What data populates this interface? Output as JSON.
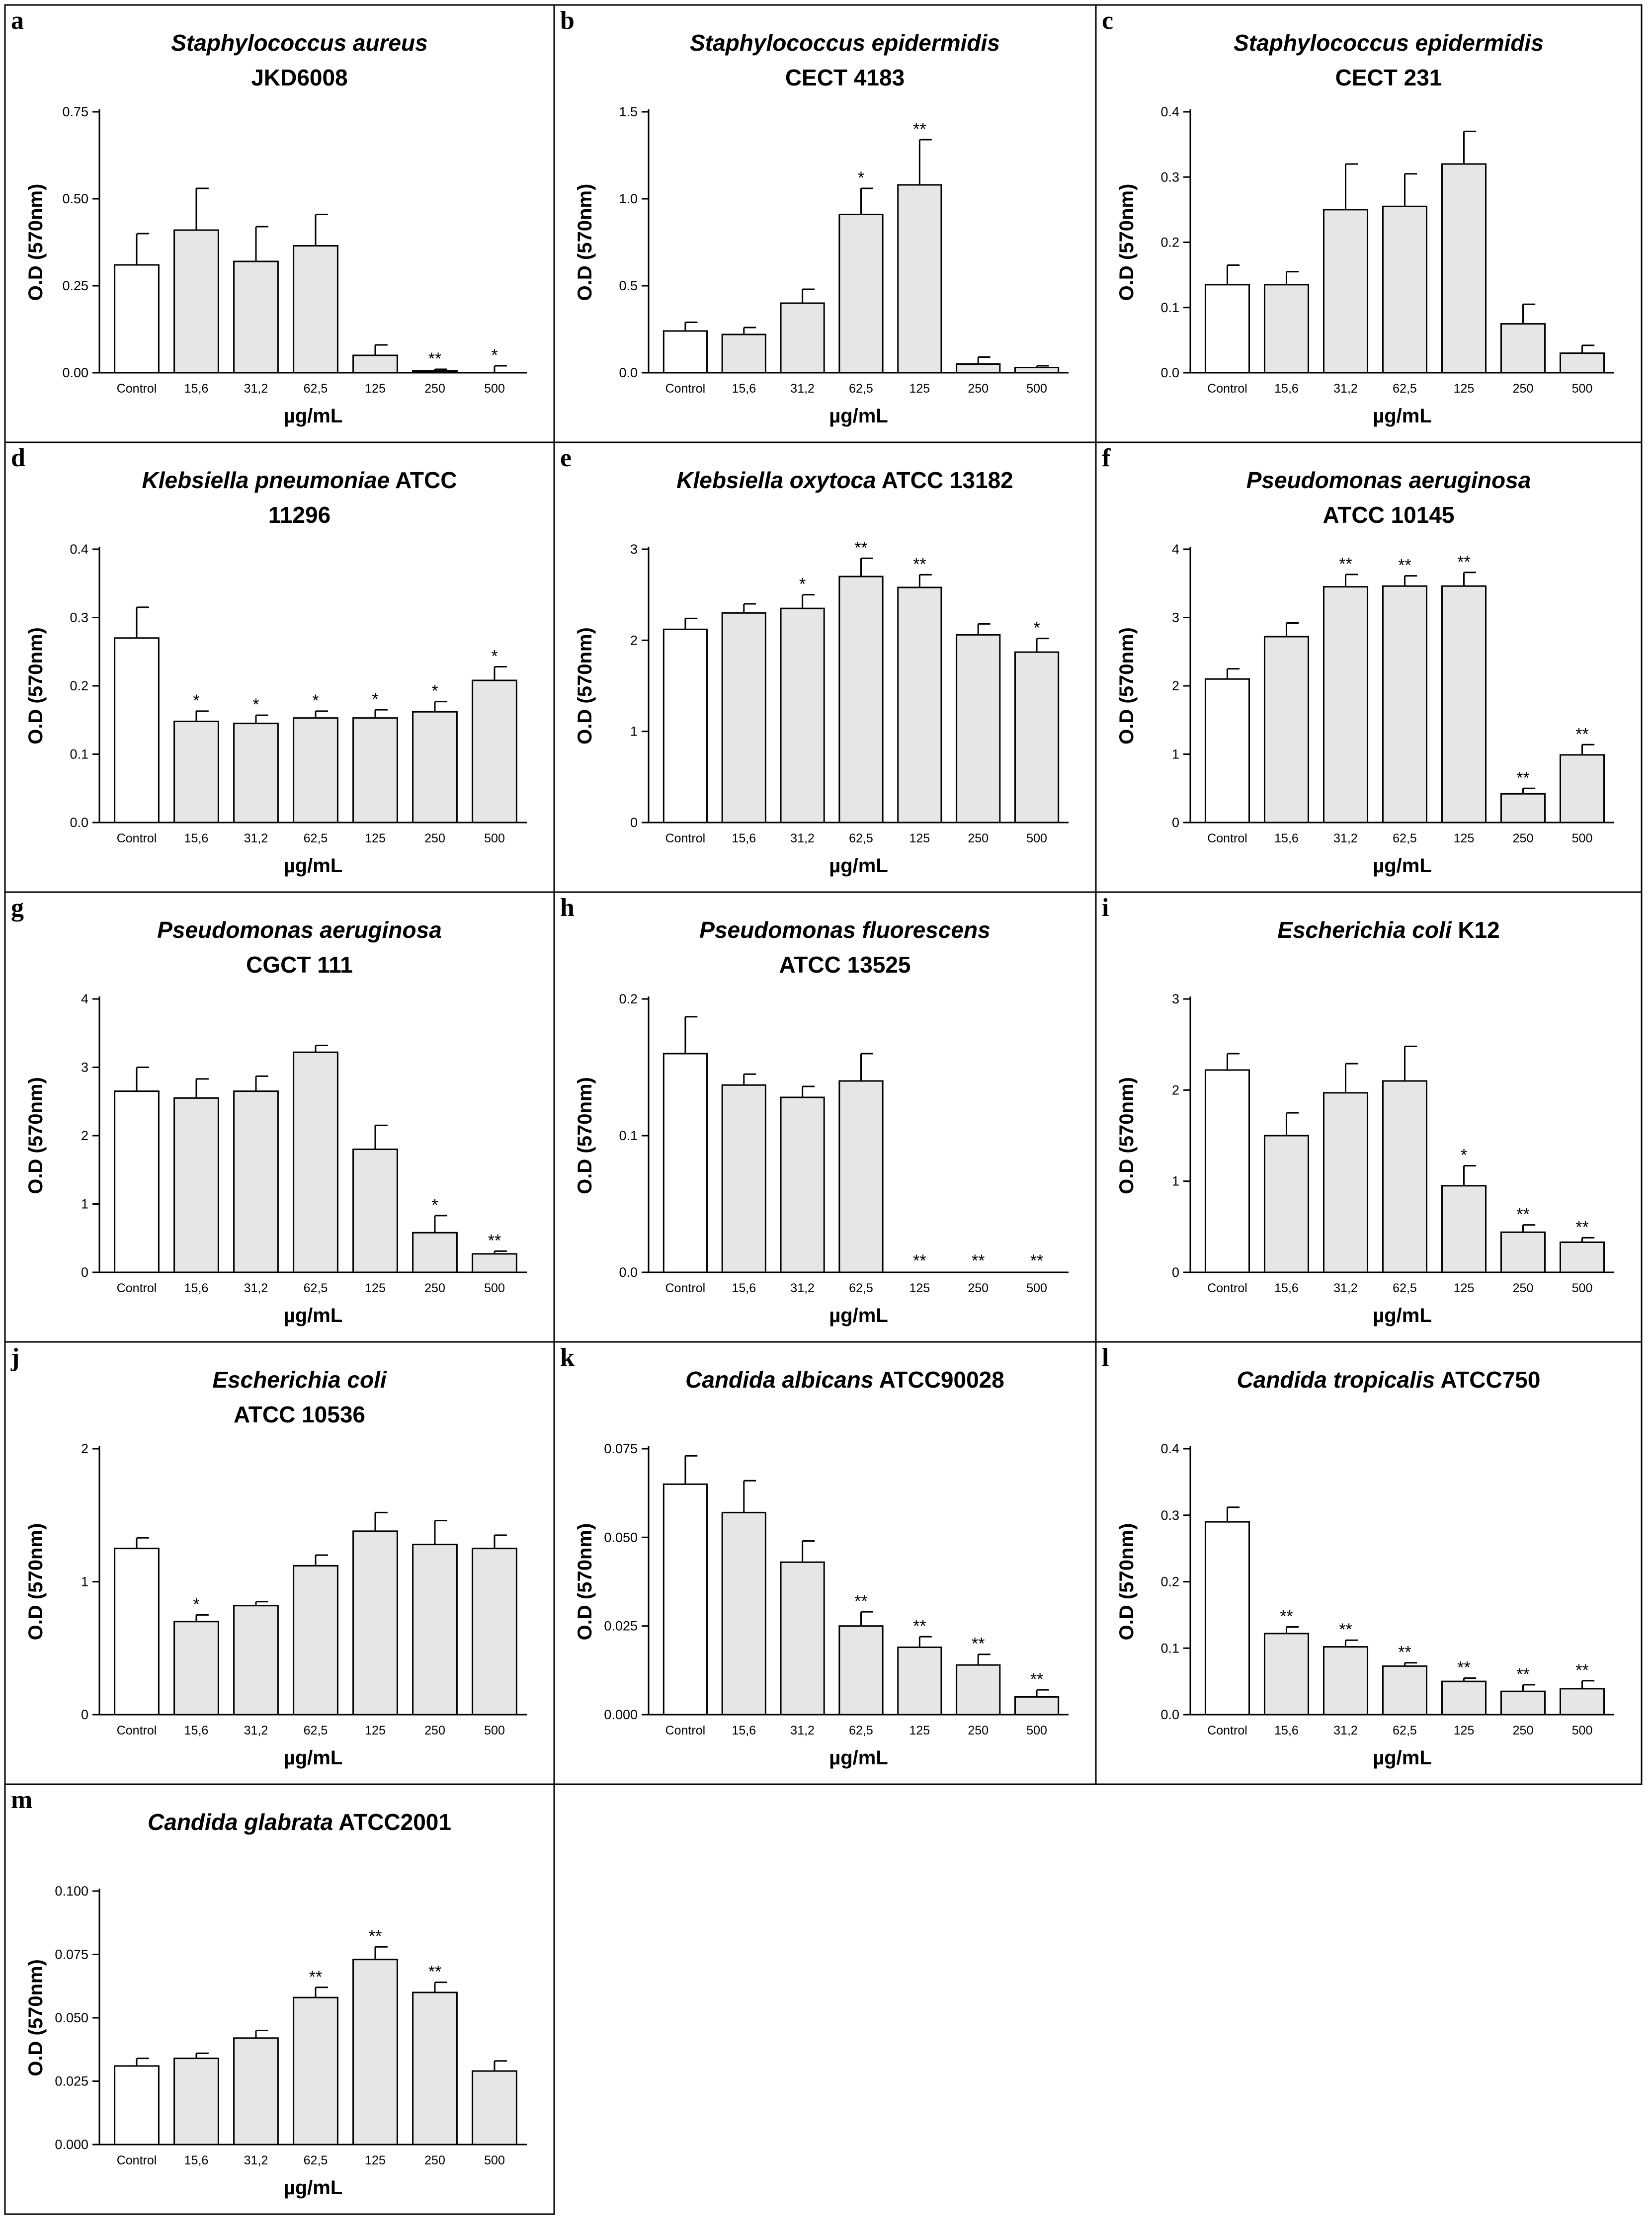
{
  "chart_data": [
    {
      "label": "a",
      "title": [
        {
          "t": "Staphylococcus aureus",
          "i": true
        }
      ],
      "title2": [
        {
          "t": "JKD6008",
          "i": false
        }
      ],
      "type": "bar",
      "ylabel": "O.D (570nm)",
      "xlabel": "µg/mL",
      "ylim": [
        0,
        0.75
      ],
      "yticks": [
        "0.00",
        "0.25",
        "0.50",
        "0.75"
      ],
      "ytick_values": [
        0,
        0.25,
        0.5,
        0.75
      ],
      "categories": [
        "Control",
        "15,6",
        "31,2",
        "62,5",
        "125",
        "250",
        "500"
      ],
      "values": [
        0.31,
        0.41,
        0.32,
        0.365,
        0.05,
        0.005,
        0.0
      ],
      "errors": [
        0.09,
        0.12,
        0.1,
        0.09,
        0.03,
        0.005,
        0.02
      ],
      "significance": [
        "",
        "",
        "",
        "",
        "",
        "**",
        "*"
      ],
      "bar_colors": [
        "#ffffff",
        "#e6e6e6",
        "#e6e6e6",
        "#e6e6e6",
        "#e6e6e6",
        "#e6e6e6",
        "#e6e6e6"
      ]
    },
    {
      "label": "b",
      "title": [
        {
          "t": "Staphylococcus epidermidis",
          "i": true
        }
      ],
      "title2": [
        {
          "t": "CECT 4183",
          "i": false
        }
      ],
      "type": "bar",
      "ylabel": "O.D (570nm)",
      "xlabel": "µg/mL",
      "ylim": [
        0,
        1.5
      ],
      "yticks": [
        "0.0",
        "0.5",
        "1.0",
        "1.5"
      ],
      "ytick_values": [
        0,
        0.5,
        1.0,
        1.5
      ],
      "categories": [
        "Control",
        "15,6",
        "31,2",
        "62,5",
        "125",
        "250",
        "500"
      ],
      "values": [
        0.24,
        0.22,
        0.4,
        0.91,
        1.08,
        0.05,
        0.03
      ],
      "errors": [
        0.05,
        0.04,
        0.08,
        0.15,
        0.26,
        0.04,
        0.01
      ],
      "significance": [
        "",
        "",
        "",
        "*",
        "**",
        "",
        ""
      ],
      "bar_colors": [
        "#ffffff",
        "#e6e6e6",
        "#e6e6e6",
        "#e6e6e6",
        "#e6e6e6",
        "#e6e6e6",
        "#e6e6e6"
      ]
    },
    {
      "label": "c",
      "title": [
        {
          "t": "Staphylococcus epidermidis",
          "i": true
        }
      ],
      "title2": [
        {
          "t": "CECT 231",
          "i": false
        }
      ],
      "type": "bar",
      "ylabel": "O.D (570nm)",
      "xlabel": "µg/mL",
      "ylim": [
        0,
        0.4
      ],
      "yticks": [
        "0.0",
        "0.1",
        "0.2",
        "0.3",
        "0.4"
      ],
      "ytick_values": [
        0,
        0.1,
        0.2,
        0.3,
        0.4
      ],
      "categories": [
        "Control",
        "15,6",
        "31,2",
        "62,5",
        "125",
        "250",
        "500"
      ],
      "values": [
        0.135,
        0.135,
        0.25,
        0.255,
        0.32,
        0.075,
        0.03
      ],
      "errors": [
        0.03,
        0.02,
        0.07,
        0.05,
        0.05,
        0.03,
        0.012
      ],
      "significance": [
        "",
        "",
        "",
        "",
        "",
        "",
        ""
      ],
      "bar_colors": [
        "#ffffff",
        "#e6e6e6",
        "#e6e6e6",
        "#e6e6e6",
        "#e6e6e6",
        "#e6e6e6",
        "#e6e6e6"
      ]
    },
    {
      "label": "d",
      "title": [
        {
          "t": "Klebsiella pneumoniae",
          "i": true
        },
        {
          "t": " ATCC",
          "i": false
        }
      ],
      "title2": [
        {
          "t": "11296",
          "i": false
        }
      ],
      "type": "bar",
      "ylabel": "O.D (570nm)",
      "xlabel": "µg/mL",
      "ylim": [
        0,
        0.4
      ],
      "yticks": [
        "0.0",
        "0.1",
        "0.2",
        "0.3",
        "0.4"
      ],
      "ytick_values": [
        0,
        0.1,
        0.2,
        0.3,
        0.4
      ],
      "categories": [
        "Control",
        "15,6",
        "31,2",
        "62,5",
        "125",
        "250",
        "500"
      ],
      "values": [
        0.27,
        0.148,
        0.145,
        0.153,
        0.153,
        0.162,
        0.208
      ],
      "errors": [
        0.045,
        0.015,
        0.012,
        0.01,
        0.012,
        0.015,
        0.02
      ],
      "significance": [
        "",
        "*",
        "*",
        "*",
        "*",
        "*",
        "*"
      ],
      "bar_colors": [
        "#ffffff",
        "#e6e6e6",
        "#e6e6e6",
        "#e6e6e6",
        "#e6e6e6",
        "#e6e6e6",
        "#e6e6e6"
      ]
    },
    {
      "label": "e",
      "title": [
        {
          "t": "Klebsiella oxytoca",
          "i": true
        },
        {
          "t": " ATCC 13182",
          "i": false
        }
      ],
      "title2": [],
      "type": "bar",
      "ylabel": "O.D (570nm)",
      "xlabel": "µg/mL",
      "ylim": [
        0,
        3
      ],
      "yticks": [
        "0",
        "1",
        "2",
        "3"
      ],
      "ytick_values": [
        0,
        1,
        2,
        3
      ],
      "categories": [
        "Control",
        "15,6",
        "31,2",
        "62,5",
        "125",
        "250",
        "500"
      ],
      "values": [
        2.12,
        2.3,
        2.35,
        2.7,
        2.58,
        2.06,
        1.87
      ],
      "errors": [
        0.12,
        0.1,
        0.15,
        0.2,
        0.14,
        0.12,
        0.15
      ],
      "significance": [
        "",
        "",
        "*",
        "**",
        "**",
        "",
        "*"
      ],
      "bar_colors": [
        "#ffffff",
        "#e6e6e6",
        "#e6e6e6",
        "#e6e6e6",
        "#e6e6e6",
        "#e6e6e6",
        "#e6e6e6"
      ]
    },
    {
      "label": "f",
      "title": [
        {
          "t": "Pseudomonas aeruginosa",
          "i": true
        }
      ],
      "title2": [
        {
          "t": "ATCC 10145",
          "i": false
        }
      ],
      "type": "bar",
      "ylabel": "O.D (570nm)",
      "xlabel": "µg/mL",
      "ylim": [
        0,
        4
      ],
      "yticks": [
        "0",
        "1",
        "2",
        "3",
        "4"
      ],
      "ytick_values": [
        0,
        1,
        2,
        3,
        4
      ],
      "categories": [
        "Control",
        "15,6",
        "31,2",
        "62,5",
        "125",
        "250",
        "500"
      ],
      "values": [
        2.1,
        2.72,
        3.45,
        3.46,
        3.46,
        0.42,
        0.99
      ],
      "errors": [
        0.15,
        0.2,
        0.18,
        0.15,
        0.2,
        0.08,
        0.15
      ],
      "significance": [
        "",
        "",
        "**",
        "**",
        "**",
        "**",
        "**"
      ],
      "bar_colors": [
        "#ffffff",
        "#e6e6e6",
        "#e6e6e6",
        "#e6e6e6",
        "#e6e6e6",
        "#e6e6e6",
        "#e6e6e6"
      ]
    },
    {
      "label": "g",
      "title": [
        {
          "t": "Pseudomonas aeruginosa",
          "i": true
        }
      ],
      "title2": [
        {
          "t": "CGCT 111",
          "i": false
        }
      ],
      "type": "bar",
      "ylabel": "O.D (570nm)",
      "xlabel": "µg/mL",
      "ylim": [
        0,
        4
      ],
      "yticks": [
        "0",
        "1",
        "2",
        "3",
        "4"
      ],
      "ytick_values": [
        0,
        1,
        2,
        3,
        4
      ],
      "categories": [
        "Control",
        "15,6",
        "31,2",
        "62,5",
        "125",
        "250",
        "500"
      ],
      "values": [
        2.65,
        2.55,
        2.65,
        3.22,
        1.8,
        0.58,
        0.27
      ],
      "errors": [
        0.35,
        0.28,
        0.22,
        0.1,
        0.35,
        0.25,
        0.04
      ],
      "significance": [
        "",
        "",
        "",
        "",
        "",
        "*",
        "**"
      ],
      "bar_colors": [
        "#ffffff",
        "#e6e6e6",
        "#e6e6e6",
        "#e6e6e6",
        "#e6e6e6",
        "#e6e6e6",
        "#e6e6e6"
      ]
    },
    {
      "label": "h",
      "title": [
        {
          "t": "Pseudomonas fluorescens",
          "i": true
        }
      ],
      "title2": [
        {
          "t": "ATCC 13525",
          "i": false
        }
      ],
      "type": "bar",
      "ylabel": "O.D (570nm)",
      "xlabel": "µg/mL",
      "ylim": [
        0,
        0.2
      ],
      "yticks": [
        "0.0",
        "0.1",
        "0.2"
      ],
      "ytick_values": [
        0,
        0.1,
        0.2
      ],
      "categories": [
        "Control",
        "15,6",
        "31,2",
        "62,5",
        "125",
        "250",
        "500"
      ],
      "values": [
        0.16,
        0.137,
        0.128,
        0.14,
        0,
        0,
        0
      ],
      "errors": [
        0.027,
        0.008,
        0.008,
        0.02,
        0,
        0,
        0
      ],
      "significance": [
        "",
        "",
        "",
        "",
        "**",
        "**",
        "**"
      ],
      "bar_colors": [
        "#ffffff",
        "#e6e6e6",
        "#e6e6e6",
        "#e6e6e6",
        "#e6e6e6",
        "#e6e6e6",
        "#e6e6e6"
      ]
    },
    {
      "label": "i",
      "title": [
        {
          "t": "Escherichia coli",
          "i": true
        },
        {
          "t": " K12",
          "i": false
        }
      ],
      "title2": [],
      "type": "bar",
      "ylabel": "O.D (570nm)",
      "xlabel": "µg/mL",
      "ylim": [
        0,
        3
      ],
      "yticks": [
        "0",
        "1",
        "2",
        "3"
      ],
      "ytick_values": [
        0,
        1,
        2,
        3
      ],
      "categories": [
        "Control",
        "15,6",
        "31,2",
        "62,5",
        "125",
        "250",
        "500"
      ],
      "values": [
        2.22,
        1.5,
        1.97,
        2.1,
        0.95,
        0.44,
        0.33
      ],
      "errors": [
        0.18,
        0.25,
        0.32,
        0.38,
        0.22,
        0.08,
        0.05
      ],
      "significance": [
        "",
        "",
        "",
        "",
        "*",
        "**",
        "**"
      ],
      "bar_colors": [
        "#ffffff",
        "#e6e6e6",
        "#e6e6e6",
        "#e6e6e6",
        "#e6e6e6",
        "#e6e6e6",
        "#e6e6e6"
      ]
    },
    {
      "label": "j",
      "title": [
        {
          "t": "Escherichia coli",
          "i": true
        }
      ],
      "title2": [
        {
          "t": "ATCC 10536",
          "i": false
        }
      ],
      "type": "bar",
      "ylabel": "O.D (570nm)",
      "xlabel": "µg/mL",
      "ylim": [
        0,
        2
      ],
      "yticks": [
        "0",
        "1",
        "2"
      ],
      "ytick_values": [
        0,
        1,
        2
      ],
      "categories": [
        "Control",
        "15,6",
        "31,2",
        "62,5",
        "125",
        "250",
        "500"
      ],
      "values": [
        1.25,
        0.7,
        0.82,
        1.12,
        1.38,
        1.28,
        1.25
      ],
      "errors": [
        0.08,
        0.05,
        0.03,
        0.08,
        0.14,
        0.18,
        0.1
      ],
      "significance": [
        "",
        "*",
        "",
        "",
        "",
        "",
        ""
      ],
      "bar_colors": [
        "#ffffff",
        "#e6e6e6",
        "#e6e6e6",
        "#e6e6e6",
        "#e6e6e6",
        "#e6e6e6",
        "#e6e6e6"
      ]
    },
    {
      "label": "k",
      "title": [
        {
          "t": "Candida albicans",
          "i": true
        },
        {
          "t": " ATCC90028",
          "i": false
        }
      ],
      "title2": [],
      "type": "bar",
      "ylabel": "O.D (570nm)",
      "xlabel": "µg/mL",
      "ylim": [
        0,
        0.075
      ],
      "yticks": [
        "0.000",
        "0.025",
        "0.050",
        "0.075"
      ],
      "ytick_values": [
        0,
        0.025,
        0.05,
        0.075
      ],
      "categories": [
        "Control",
        "15,6",
        "31,2",
        "62,5",
        "125",
        "250",
        "500"
      ],
      "values": [
        0.065,
        0.057,
        0.043,
        0.025,
        0.019,
        0.014,
        0.005
      ],
      "errors": [
        0.008,
        0.009,
        0.006,
        0.004,
        0.003,
        0.003,
        0.002
      ],
      "significance": [
        "",
        "",
        "",
        "**",
        "**",
        "**",
        "**"
      ],
      "bar_colors": [
        "#ffffff",
        "#e6e6e6",
        "#e6e6e6",
        "#e6e6e6",
        "#e6e6e6",
        "#e6e6e6",
        "#e6e6e6"
      ]
    },
    {
      "label": "l",
      "title": [
        {
          "t": "Candida tropicalis",
          "i": true
        },
        {
          "t": " ATCC750",
          "i": false
        }
      ],
      "title2": [],
      "type": "bar",
      "ylabel": "O.D (570nm)",
      "xlabel": "µg/mL",
      "ylim": [
        0,
        0.4
      ],
      "yticks": [
        "0.0",
        "0.1",
        "0.2",
        "0.3",
        "0.4"
      ],
      "ytick_values": [
        0,
        0.1,
        0.2,
        0.3,
        0.4
      ],
      "categories": [
        "Control",
        "15,6",
        "31,2",
        "62,5",
        "125",
        "250",
        "500"
      ],
      "values": [
        0.29,
        0.122,
        0.102,
        0.073,
        0.05,
        0.035,
        0.039
      ],
      "errors": [
        0.022,
        0.01,
        0.01,
        0.005,
        0.005,
        0.01,
        0.012
      ],
      "significance": [
        "",
        "**",
        "**",
        "**",
        "**",
        "**",
        "**"
      ],
      "bar_colors": [
        "#ffffff",
        "#e6e6e6",
        "#e6e6e6",
        "#e6e6e6",
        "#e6e6e6",
        "#e6e6e6",
        "#e6e6e6"
      ]
    },
    {
      "label": "m",
      "title": [
        {
          "t": "Candida glabrata",
          "i": true
        },
        {
          "t": " ATCC2001",
          "i": false
        }
      ],
      "title2": [],
      "type": "bar",
      "ylabel": "O.D (570nm)",
      "xlabel": "µg/mL",
      "ylim": [
        0,
        0.1
      ],
      "yticks": [
        "0.000",
        "0.025",
        "0.050",
        "0.075",
        "0.100"
      ],
      "ytick_values": [
        0,
        0.025,
        0.05,
        0.075,
        0.1
      ],
      "categories": [
        "Control",
        "15,6",
        "31,2",
        "62,5",
        "125",
        "250",
        "500"
      ],
      "values": [
        0.031,
        0.034,
        0.042,
        0.058,
        0.073,
        0.06,
        0.029
      ],
      "errors": [
        0.003,
        0.002,
        0.003,
        0.004,
        0.005,
        0.004,
        0.004
      ],
      "significance": [
        "",
        "",
        "",
        "**",
        "**",
        "**",
        ""
      ],
      "bar_colors": [
        "#ffffff",
        "#e6e6e6",
        "#e6e6e6",
        "#e6e6e6",
        "#e6e6e6",
        "#e6e6e6",
        "#e6e6e6"
      ]
    }
  ]
}
